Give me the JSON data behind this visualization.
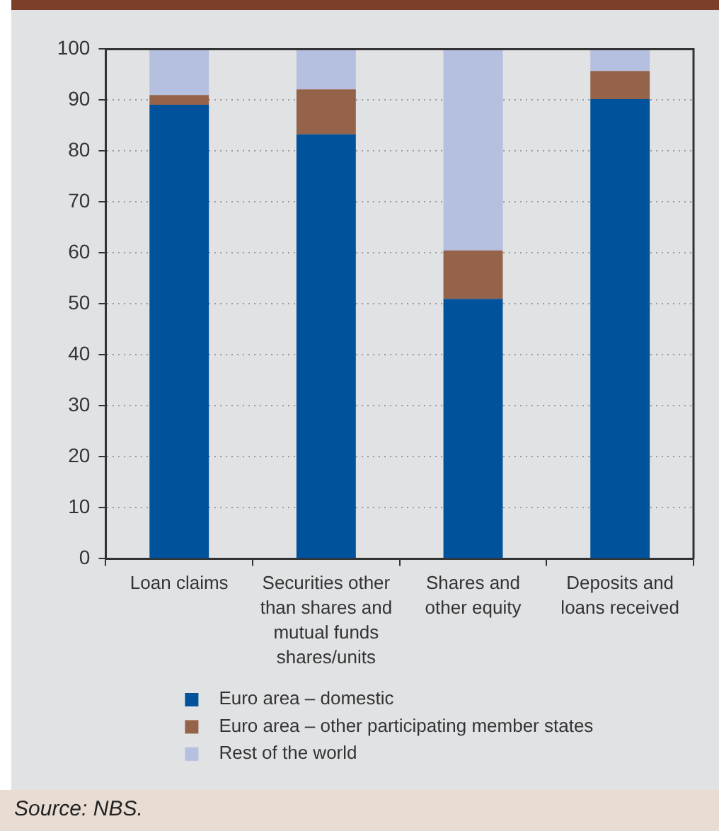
{
  "chart_data": {
    "type": "bar",
    "stacked": true,
    "categories": [
      "Loan claims",
      "Securities other than shares and mutual funds shares/units",
      "Shares and other equity",
      "Deposits and loans received"
    ],
    "series": [
      {
        "name": "Euro area – domestic",
        "color": "#00529b",
        "values": [
          89.1,
          83.3,
          51.0,
          90.2
        ]
      },
      {
        "name": "Euro area – other participating member states",
        "color": "#94634a",
        "values": [
          1.9,
          8.8,
          9.5,
          5.5
        ]
      },
      {
        "name": "Rest of the world",
        "color": "#b5bfdf",
        "values": [
          9.0,
          7.9,
          39.5,
          4.3
        ]
      }
    ],
    "ylim": [
      0,
      100
    ],
    "yticks": [
      0,
      10,
      20,
      30,
      40,
      50,
      60,
      70,
      80,
      90,
      100
    ],
    "grid": "y",
    "legend": "bottom",
    "annotations": [
      "Source: NBS."
    ]
  }
}
